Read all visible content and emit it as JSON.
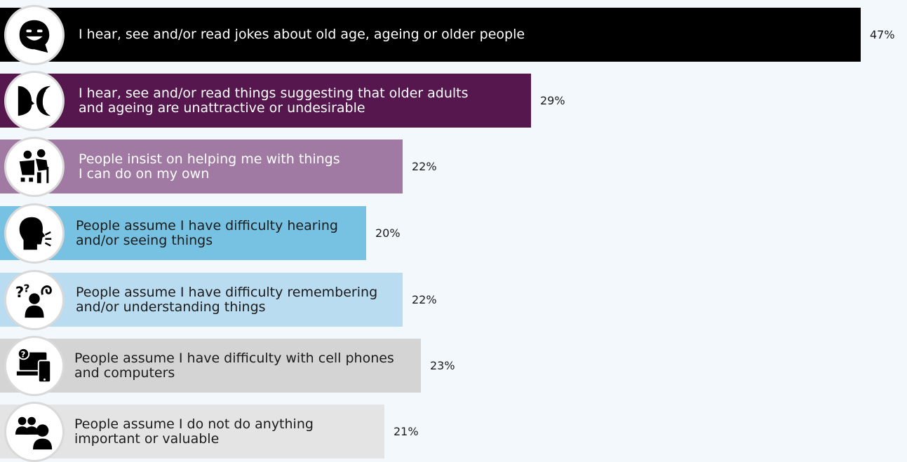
{
  "chart_data": {
    "type": "bar",
    "orientation": "horizontal",
    "xlim": [
      0,
      47
    ],
    "categories": [
      "I hear, see and/or read jokes about old age, ageing or older people",
      "I hear, see and/or read things suggesting that older adults\nand ageing are unattractive or undesirable",
      "People insist on helping me with things\nI can do on my own",
      "People assume I have difficulty hearing\nand/or seeing things",
      "People assume I have difficulty remembering\nand/or understanding things",
      "People assume I have difficulty with cell phones\nand computers",
      "People assume I do not do anything\nimportant or valuable"
    ],
    "values": [
      47,
      29,
      22,
      20,
      22,
      23,
      21
    ],
    "value_labels": [
      "47%",
      "29%",
      "22%",
      "20%",
      "22%",
      "23%",
      "21%"
    ],
    "bar_colors": [
      "#000000",
      "#56174f",
      "#a07aa3",
      "#77c2e2",
      "#b9dcf0",
      "#d4d4d4",
      "#e4e4e4"
    ],
    "label_colors": [
      "#ffffff",
      "#ffffff",
      "#ffffff",
      "#1b1b1b",
      "#1b1b1b",
      "#1b1b1b",
      "#1b1b1b"
    ],
    "icons": [
      "smiling-face-speech-bubble-icon",
      "two-faces-profile-icon",
      "helper-with-elderly-icon",
      "speaking-head-icon",
      "confused-person-icon",
      "computer-phone-question-icon",
      "group-people-icon"
    ]
  }
}
